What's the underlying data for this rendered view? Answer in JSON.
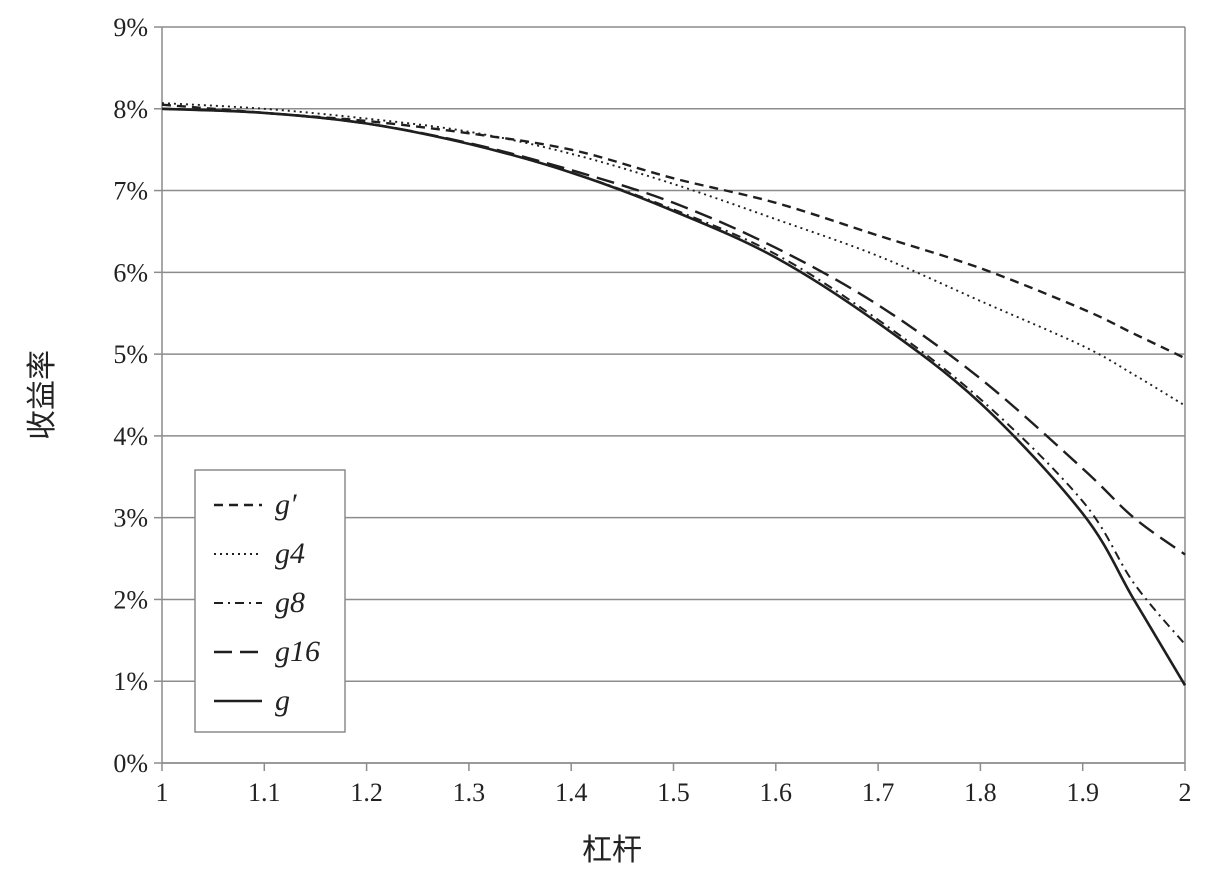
{
  "chart_data": {
    "type": "line",
    "title": "",
    "xlabel": "杠杆",
    "ylabel": "收益率",
    "xlim": [
      1,
      2
    ],
    "ylim": [
      0,
      9
    ],
    "grid": true,
    "legend_position": "lower-left",
    "x_ticks": [
      "1",
      "1.1",
      "1.2",
      "1.3",
      "1.4",
      "1.5",
      "1.6",
      "1.7",
      "1.8",
      "1.9",
      "2"
    ],
    "y_ticks": [
      "0%",
      "1%",
      "2%",
      "3%",
      "4%",
      "5%",
      "6%",
      "7%",
      "8%",
      "9%"
    ],
    "x": [
      1.0,
      1.1,
      1.2,
      1.3,
      1.4,
      1.5,
      1.6,
      1.7,
      1.8,
      1.9,
      1.95,
      2.0
    ],
    "series": [
      {
        "name": "g′",
        "dash": "dash",
        "values": [
          8.05,
          7.95,
          7.85,
          7.7,
          7.5,
          7.15,
          6.85,
          6.45,
          6.05,
          5.55,
          5.25,
          4.95
        ]
      },
      {
        "name": "g4",
        "dash": "dot",
        "values": [
          8.07,
          8.0,
          7.88,
          7.72,
          7.45,
          7.08,
          6.65,
          6.2,
          5.65,
          5.1,
          4.75,
          4.37
        ]
      },
      {
        "name": "g8",
        "dash": "dashdot",
        "values": [
          8.0,
          7.95,
          7.82,
          7.57,
          7.22,
          6.77,
          6.22,
          5.42,
          4.45,
          3.2,
          2.2,
          1.45
        ]
      },
      {
        "name": "g16",
        "dash": "longdash",
        "values": [
          8.0,
          7.95,
          7.82,
          7.58,
          7.25,
          6.85,
          6.3,
          5.6,
          4.7,
          3.6,
          3.0,
          2.55
        ]
      },
      {
        "name": "g",
        "dash": "solid",
        "values": [
          8.0,
          7.95,
          7.82,
          7.57,
          7.22,
          6.75,
          6.18,
          5.38,
          4.4,
          3.05,
          2.0,
          0.95
        ]
      }
    ]
  }
}
